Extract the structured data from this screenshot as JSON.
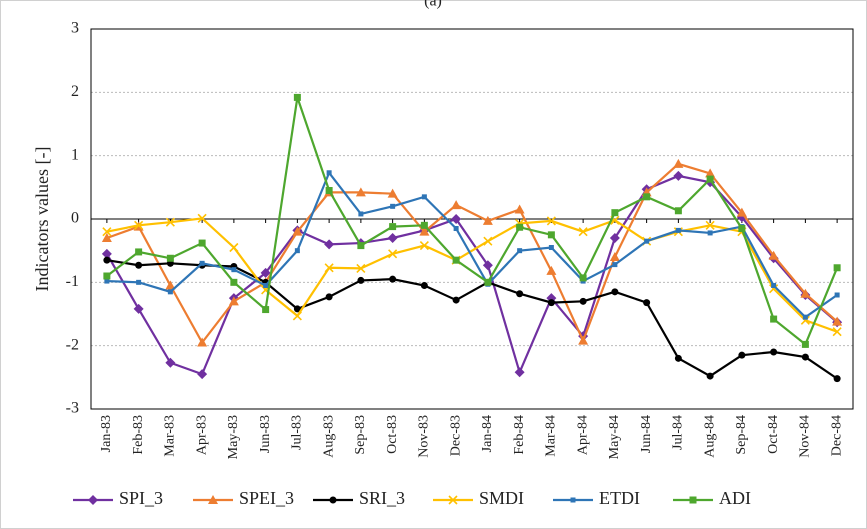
{
  "chart_data": {
    "type": "line",
    "title": "(a)",
    "y_label": "Indicators values [-]",
    "categories": [
      "Jan-83",
      "Feb-83",
      "Mar-83",
      "Apr-83",
      "May-83",
      "Jun-83",
      "Jul-83",
      "Aug-83",
      "Sep-83",
      "Oct-83",
      "Nov-83",
      "Dec-83",
      "Jan-84",
      "Feb-84",
      "Mar-84",
      "Apr-84",
      "May-84",
      "Jun-84",
      "Jul-84",
      "Aug-84",
      "Sep-84",
      "Oct-84",
      "Nov-84",
      "Dec-84"
    ],
    "ylim": [
      -3,
      3
    ],
    "yticks": [
      -3,
      -2,
      -1,
      0,
      1,
      2,
      3
    ],
    "grid": true,
    "legend": "bottom",
    "series": [
      {
        "name": "SPI_3",
        "color": "#7030a0",
        "marker": "diamond",
        "values": [
          -0.55,
          -1.42,
          -2.27,
          -2.45,
          -1.25,
          -0.85,
          -0.18,
          -0.4,
          -0.38,
          -0.3,
          -0.18,
          0.0,
          -0.73,
          -2.42,
          -1.25,
          -1.85,
          -0.3,
          0.47,
          0.68,
          0.58,
          0.03,
          -0.62,
          -1.2,
          -1.63
        ]
      },
      {
        "name": "SPEI_3",
        "color": "#ed7d31",
        "marker": "triangle",
        "values": [
          -0.3,
          -0.12,
          -1.05,
          -1.95,
          -1.3,
          -1.0,
          -0.2,
          0.42,
          0.42,
          0.4,
          -0.2,
          0.22,
          -0.03,
          0.15,
          -0.82,
          -1.92,
          -0.6,
          0.42,
          0.87,
          0.72,
          0.1,
          -0.58,
          -1.18,
          -1.62
        ]
      },
      {
        "name": "SRI_3",
        "color": "#000000",
        "marker": "circle",
        "values": [
          -0.65,
          -0.73,
          -0.7,
          -0.73,
          -0.75,
          -1.0,
          -1.42,
          -1.23,
          -0.97,
          -0.95,
          -1.05,
          -1.28,
          -1.0,
          -1.18,
          -1.32,
          -1.3,
          -1.15,
          -1.32,
          -2.2,
          -2.48,
          -2.15,
          -2.1,
          -2.18,
          -2.52
        ]
      },
      {
        "name": "SMDI",
        "color": "#ffc000",
        "marker": "x",
        "values": [
          -0.2,
          -0.1,
          -0.05,
          0.01,
          -0.45,
          -1.12,
          -1.53,
          -0.77,
          -0.78,
          -0.55,
          -0.42,
          -0.65,
          -0.35,
          -0.07,
          -0.03,
          -0.2,
          -0.02,
          -0.35,
          -0.2,
          -0.1,
          -0.2,
          -1.1,
          -1.6,
          -1.78
        ]
      },
      {
        "name": "ETDI",
        "color": "#2e75b6",
        "marker": "square-small",
        "values": [
          -0.98,
          -1.0,
          -1.15,
          -0.7,
          -0.8,
          -1.05,
          -0.5,
          0.73,
          0.08,
          0.2,
          0.35,
          -0.15,
          -1.03,
          -0.5,
          -0.45,
          -0.98,
          -0.72,
          -0.35,
          -0.18,
          -0.22,
          -0.12,
          -1.05,
          -1.55,
          -1.2
        ]
      },
      {
        "name": "ADI",
        "color": "#4ea72e",
        "marker": "square",
        "values": [
          -0.9,
          -0.52,
          -0.62,
          -0.38,
          -1.0,
          -1.43,
          1.92,
          0.45,
          -0.42,
          -0.12,
          -0.1,
          -0.65,
          -1.0,
          -0.13,
          -0.25,
          -0.93,
          0.1,
          0.35,
          0.13,
          0.63,
          -0.15,
          -1.58,
          -1.98,
          -0.77
        ]
      }
    ]
  }
}
